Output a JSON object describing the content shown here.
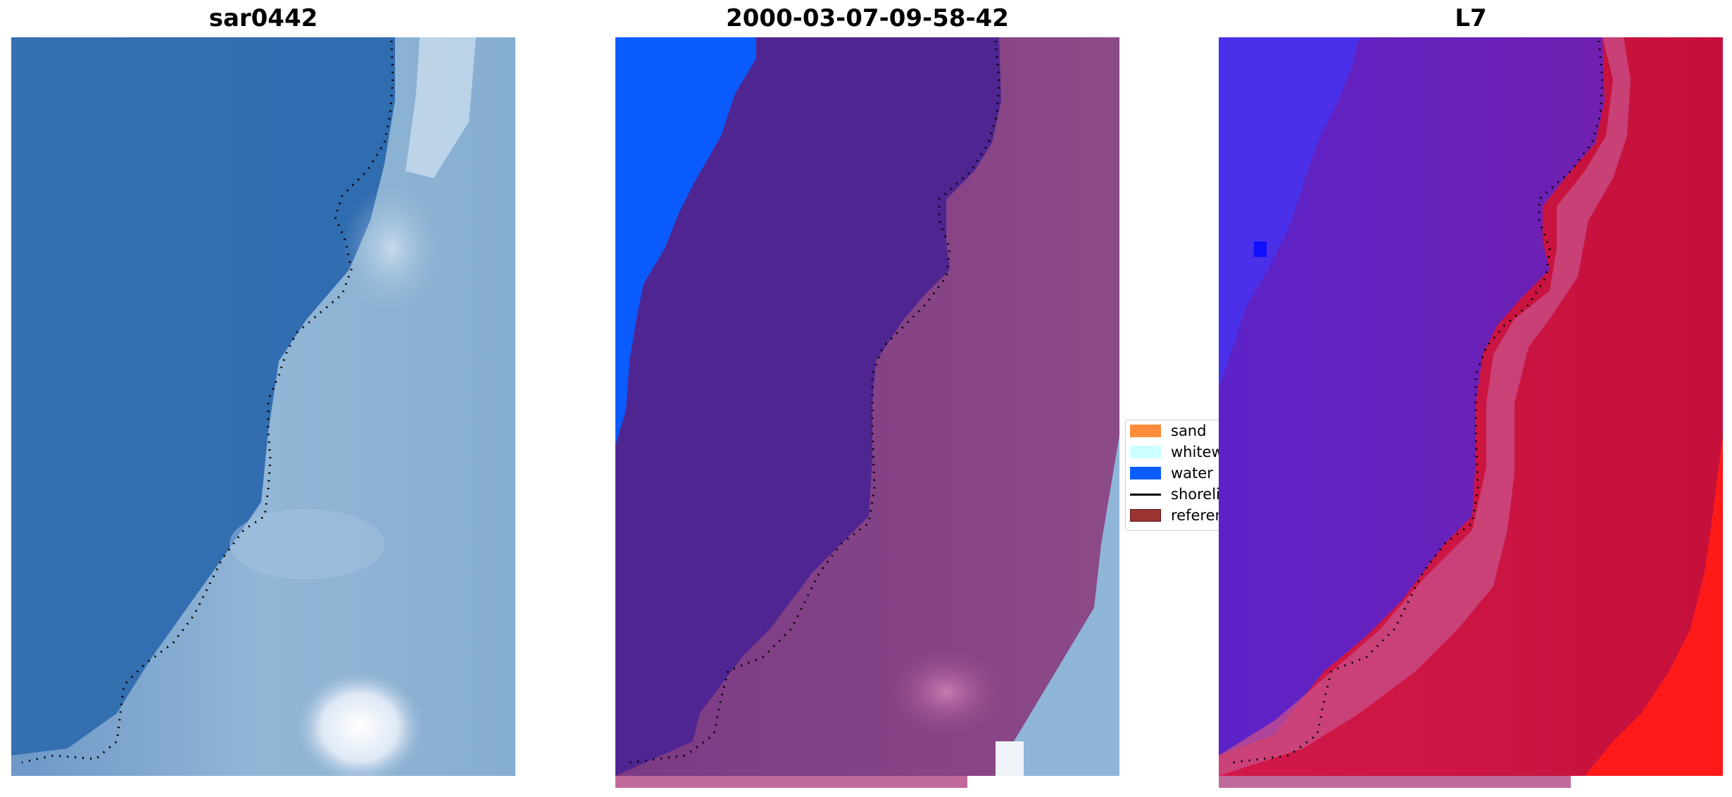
{
  "panels": [
    {
      "title": "sar0442"
    },
    {
      "title": "2000-03-07-09-58-42"
    },
    {
      "title": "L7"
    }
  ],
  "legend": {
    "items": [
      {
        "label": "sand",
        "kind": "patch",
        "color": "#ff8c3a"
      },
      {
        "label": "whitewater",
        "kind": "patch",
        "color": "#ccffff"
      },
      {
        "label": "water",
        "kind": "patch",
        "color": "#0a5cff"
      },
      {
        "label": "shoreline",
        "kind": "line",
        "color": "#000000"
      },
      {
        "label": "reference",
        "kind": "patch",
        "color": "#9c3333"
      }
    ]
  },
  "colors": {
    "water_rgb": "#2f6fb3",
    "surf_rgb": "#8fb3d4",
    "classified_water": "#4f2591",
    "classified_surf": "#8a3f80",
    "water_mask": "#0a5cff",
    "l7_water": "#6a1fb0",
    "l7_land": "#c8143c",
    "l7_bright": "#ff1a1a",
    "l7_deep_water": "#2c3cf0"
  }
}
